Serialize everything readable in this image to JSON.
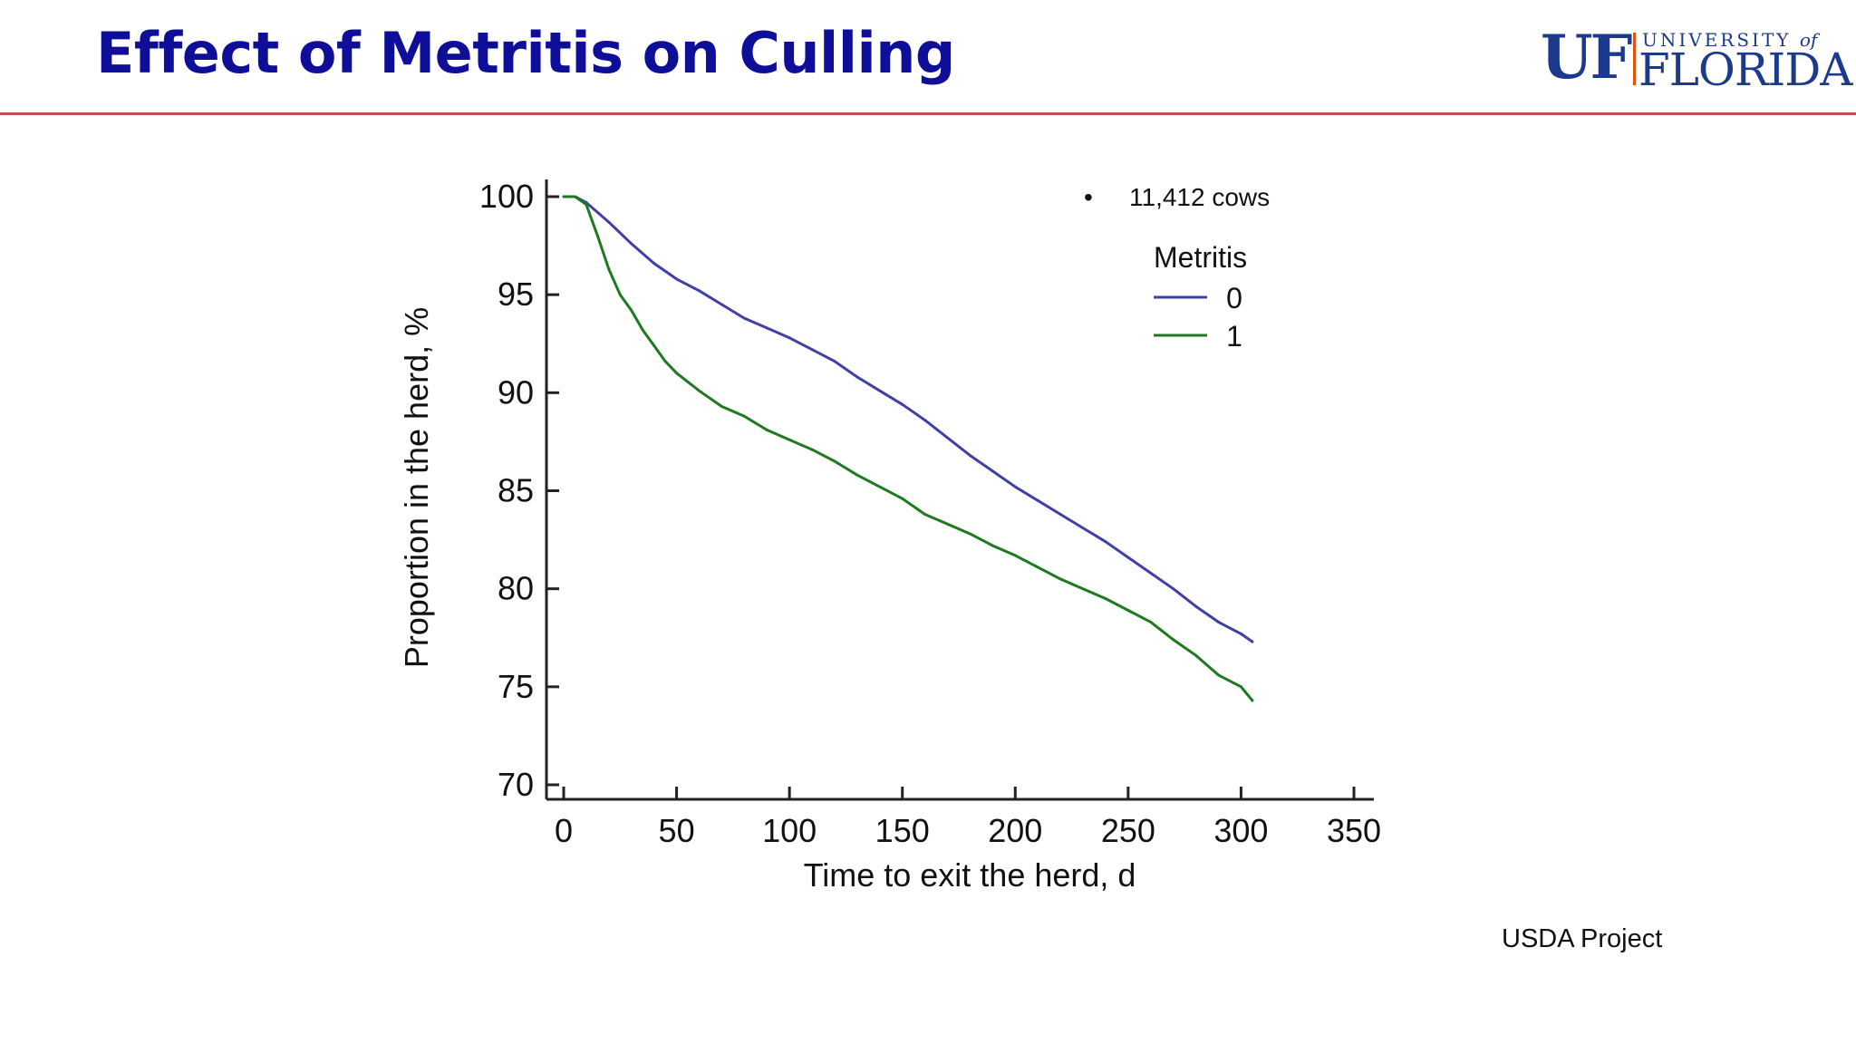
{
  "slide": {
    "title": "Effect of Metritis on Culling",
    "bullet_note": "11,412 cows",
    "source_note": "USDA Project"
  },
  "logo": {
    "uf": "UF",
    "university": "UNIVERSITY",
    "of": "of",
    "florida": "FLORIDA"
  },
  "colors": {
    "title": "#0e0e99",
    "header_rule": "#c0504d",
    "series_0": "#3f3fa6",
    "series_1": "#1e7a1e"
  },
  "chart_data": {
    "type": "line",
    "xlabel": "Time to exit the herd, d",
    "ylabel": "Proportion in the herd, %",
    "xlim": [
      0,
      350
    ],
    "ylim": [
      70,
      100
    ],
    "xticks": [
      0,
      50,
      100,
      150,
      200,
      250,
      300,
      350
    ],
    "yticks": [
      100,
      95,
      90,
      85,
      80,
      75,
      70
    ],
    "legend": {
      "title": "Metritis",
      "position": "top-right"
    },
    "grid": false,
    "series": [
      {
        "name": "0",
        "x": [
          0,
          5,
          10,
          20,
          30,
          40,
          50,
          60,
          70,
          80,
          90,
          100,
          110,
          120,
          130,
          140,
          150,
          160,
          170,
          180,
          190,
          200,
          210,
          220,
          230,
          240,
          250,
          260,
          270,
          280,
          290,
          300,
          305
        ],
        "y": [
          100,
          100,
          99.7,
          98.7,
          97.6,
          96.6,
          95.8,
          95.2,
          94.5,
          93.8,
          93.3,
          92.8,
          92.2,
          91.6,
          90.8,
          90.1,
          89.4,
          88.6,
          87.7,
          86.8,
          86.0,
          85.2,
          84.5,
          83.8,
          83.1,
          82.4,
          81.6,
          80.8,
          80.0,
          79.1,
          78.3,
          77.7,
          77.3
        ]
      },
      {
        "name": "1",
        "x": [
          0,
          5,
          10,
          15,
          20,
          25,
          30,
          35,
          40,
          45,
          50,
          60,
          70,
          80,
          90,
          100,
          110,
          120,
          130,
          140,
          150,
          160,
          170,
          180,
          190,
          200,
          210,
          220,
          230,
          240,
          250,
          260,
          270,
          280,
          290,
          300,
          305
        ],
        "y": [
          100,
          100,
          99.6,
          98.0,
          96.3,
          95.0,
          94.2,
          93.2,
          92.4,
          91.6,
          91.0,
          90.1,
          89.3,
          88.8,
          88.1,
          87.6,
          87.1,
          86.5,
          85.8,
          85.2,
          84.6,
          83.8,
          83.3,
          82.8,
          82.2,
          81.7,
          81.1,
          80.5,
          80.0,
          79.5,
          78.9,
          78.3,
          77.4,
          76.6,
          75.6,
          75.0,
          74.3
        ]
      }
    ]
  }
}
